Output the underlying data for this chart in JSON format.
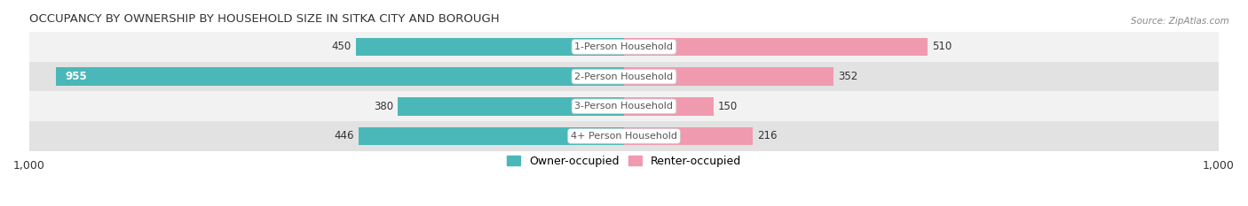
{
  "title": "OCCUPANCY BY OWNERSHIP BY HOUSEHOLD SIZE IN SITKA CITY AND BOROUGH",
  "source": "Source: ZipAtlas.com",
  "categories": [
    "1-Person Household",
    "2-Person Household",
    "3-Person Household",
    "4+ Person Household"
  ],
  "owner_values": [
    450,
    955,
    380,
    446
  ],
  "renter_values": [
    510,
    352,
    150,
    216
  ],
  "owner_color": "#4ab8b8",
  "renter_color": "#f09ab0",
  "row_bg_colors": [
    "#f2f2f2",
    "#e2e2e2",
    "#f2f2f2",
    "#e2e2e2"
  ],
  "axis_max": 1000,
  "label_fontsize": 8.5,
  "title_fontsize": 9.5,
  "legend_fontsize": 9,
  "category_label_fontsize": 8,
  "bar_height": 0.62,
  "center_label_color": "#555555",
  "value_label_color": "#333333",
  "value_label_inside_color": "#ffffff"
}
